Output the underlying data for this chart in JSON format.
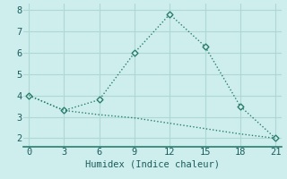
{
  "line1_x": [
    0,
    3,
    6,
    9,
    12,
    15,
    18,
    21
  ],
  "line1_y": [
    4.0,
    3.3,
    3.8,
    6.0,
    7.8,
    6.3,
    3.5,
    2.0
  ],
  "line2_x": [
    0,
    3,
    6,
    9,
    12,
    15,
    18,
    21
  ],
  "line2_y": [
    4.0,
    3.3,
    3.1,
    2.95,
    2.7,
    2.45,
    2.2,
    2.0
  ],
  "line_color": "#2a7d6e",
  "bg_color": "#cdeeed",
  "grid_color": "#aed8d4",
  "xlabel": "Humidex (Indice chaleur)",
  "xlim": [
    -0.5,
    21.5
  ],
  "ylim": [
    1.6,
    8.3
  ],
  "xticks": [
    0,
    3,
    6,
    9,
    12,
    15,
    18,
    21
  ],
  "yticks": [
    2,
    3,
    4,
    5,
    6,
    7,
    8
  ],
  "markersize": 3.5,
  "linewidth": 1.0,
  "font_size": 7.5
}
